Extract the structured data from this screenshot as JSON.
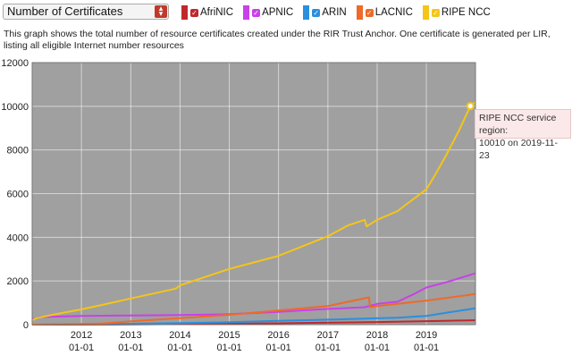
{
  "selector": {
    "value": "Number of Certificates"
  },
  "legend": [
    {
      "name": "AfriNIC",
      "color": "#c0282d"
    },
    {
      "name": "APNIC",
      "color": "#c941e8"
    },
    {
      "name": "ARIN",
      "color": "#2b8fde"
    },
    {
      "name": "LACNIC",
      "color": "#ee6a2a"
    },
    {
      "name": "RIPE NCC",
      "color": "#f5c518"
    }
  ],
  "description": "This graph shows the total number of resource certificates created under the RIR Trust Anchor. One certificate is generated per LIR, listing all eligible Internet number resources",
  "tooltip": {
    "line1": "RIPE NCC service region:",
    "line2": "10010 on 2019-11-23"
  },
  "chart_data": {
    "type": "line",
    "title": "",
    "xlabel": "",
    "ylabel": "",
    "xlim": [
      "2011-01-01",
      "2019-12-31"
    ],
    "ylim": [
      0,
      12000
    ],
    "yticks": [
      0,
      2000,
      4000,
      6000,
      8000,
      10000,
      12000
    ],
    "ytick_labels": [
      "0",
      "2000",
      "4000",
      "6000",
      "8000",
      "10000",
      "12000"
    ],
    "xticks": [
      "2012-01-01",
      "2013-01-01",
      "2014-01-01",
      "2015-01-01",
      "2016-01-01",
      "2017-01-01",
      "2018-01-01",
      "2019-01-01"
    ],
    "xtick_labels": [
      [
        "2012",
        "01-01"
      ],
      [
        "2013",
        "01-01"
      ],
      [
        "2014",
        "01-01"
      ],
      [
        "2015",
        "01-01"
      ],
      [
        "2016",
        "01-01"
      ],
      [
        "2017",
        "01-01"
      ],
      [
        "2018",
        "01-01"
      ],
      [
        "2019",
        "01-01"
      ]
    ],
    "grid": true,
    "legend_position": "top",
    "plot_background": "#a0a0a0",
    "series": [
      {
        "name": "AfriNIC",
        "color": "#c0282d",
        "points": [
          [
            "2011-01-01",
            0
          ],
          [
            "2013-01-01",
            10
          ],
          [
            "2015-01-01",
            40
          ],
          [
            "2016-01-01",
            60
          ],
          [
            "2017-01-01",
            90
          ],
          [
            "2018-01-01",
            120
          ],
          [
            "2019-01-01",
            160
          ],
          [
            "2019-12-31",
            200
          ]
        ]
      },
      {
        "name": "APNIC",
        "color": "#c941e8",
        "points": [
          [
            "2011-01-01",
            250
          ],
          [
            "2011-03-01",
            350
          ],
          [
            "2012-01-01",
            400
          ],
          [
            "2013-01-01",
            420
          ],
          [
            "2014-01-01",
            440
          ],
          [
            "2015-01-01",
            480
          ],
          [
            "2016-01-01",
            580
          ],
          [
            "2017-01-01",
            720
          ],
          [
            "2017-10-01",
            800
          ],
          [
            "2018-01-01",
            950
          ],
          [
            "2018-06-01",
            1050
          ],
          [
            "2018-10-01",
            1400
          ],
          [
            "2019-01-01",
            1700
          ],
          [
            "2019-06-01",
            1950
          ],
          [
            "2019-12-31",
            2350
          ]
        ]
      },
      {
        "name": "ARIN",
        "color": "#2b8fde",
        "points": [
          [
            "2011-01-01",
            0
          ],
          [
            "2012-01-01",
            20
          ],
          [
            "2013-01-01",
            40
          ],
          [
            "2014-01-01",
            70
          ],
          [
            "2015-01-01",
            110
          ],
          [
            "2016-01-01",
            170
          ],
          [
            "2017-01-01",
            230
          ],
          [
            "2018-01-01",
            290
          ],
          [
            "2018-06-01",
            320
          ],
          [
            "2019-01-01",
            400
          ],
          [
            "2019-06-01",
            550
          ],
          [
            "2019-12-31",
            750
          ]
        ]
      },
      {
        "name": "LACNIC",
        "color": "#ee6a2a",
        "points": [
          [
            "2011-01-01",
            0
          ],
          [
            "2012-06-01",
            50
          ],
          [
            "2013-01-01",
            150
          ],
          [
            "2014-01-01",
            300
          ],
          [
            "2015-01-01",
            450
          ],
          [
            "2016-01-01",
            650
          ],
          [
            "2017-01-01",
            850
          ],
          [
            "2017-06-01",
            1050
          ],
          [
            "2017-11-01",
            1250
          ],
          [
            "2017-11-10",
            800
          ],
          [
            "2018-01-01",
            850
          ],
          [
            "2019-01-01",
            1100
          ],
          [
            "2019-12-31",
            1400
          ]
        ]
      },
      {
        "name": "RIPE NCC",
        "color": "#f5c518",
        "points": [
          [
            "2011-01-01",
            200
          ],
          [
            "2011-02-01",
            300
          ],
          [
            "2011-06-01",
            450
          ],
          [
            "2012-01-01",
            700
          ],
          [
            "2012-06-01",
            900
          ],
          [
            "2013-01-01",
            1200
          ],
          [
            "2013-06-01",
            1400
          ],
          [
            "2013-12-01",
            1650
          ],
          [
            "2014-01-01",
            1800
          ],
          [
            "2015-01-01",
            2550
          ],
          [
            "2016-01-01",
            3150
          ],
          [
            "2017-01-01",
            4050
          ],
          [
            "2017-06-01",
            4550
          ],
          [
            "2017-10-01",
            4800
          ],
          [
            "2017-10-15",
            4500
          ],
          [
            "2018-01-01",
            4800
          ],
          [
            "2018-06-01",
            5200
          ],
          [
            "2019-01-01",
            6200
          ],
          [
            "2019-03-01",
            6800
          ],
          [
            "2019-06-01",
            7800
          ],
          [
            "2019-09-01",
            8900
          ],
          [
            "2019-11-23",
            10010
          ],
          [
            "2019-12-31",
            10200
          ]
        ]
      }
    ]
  }
}
